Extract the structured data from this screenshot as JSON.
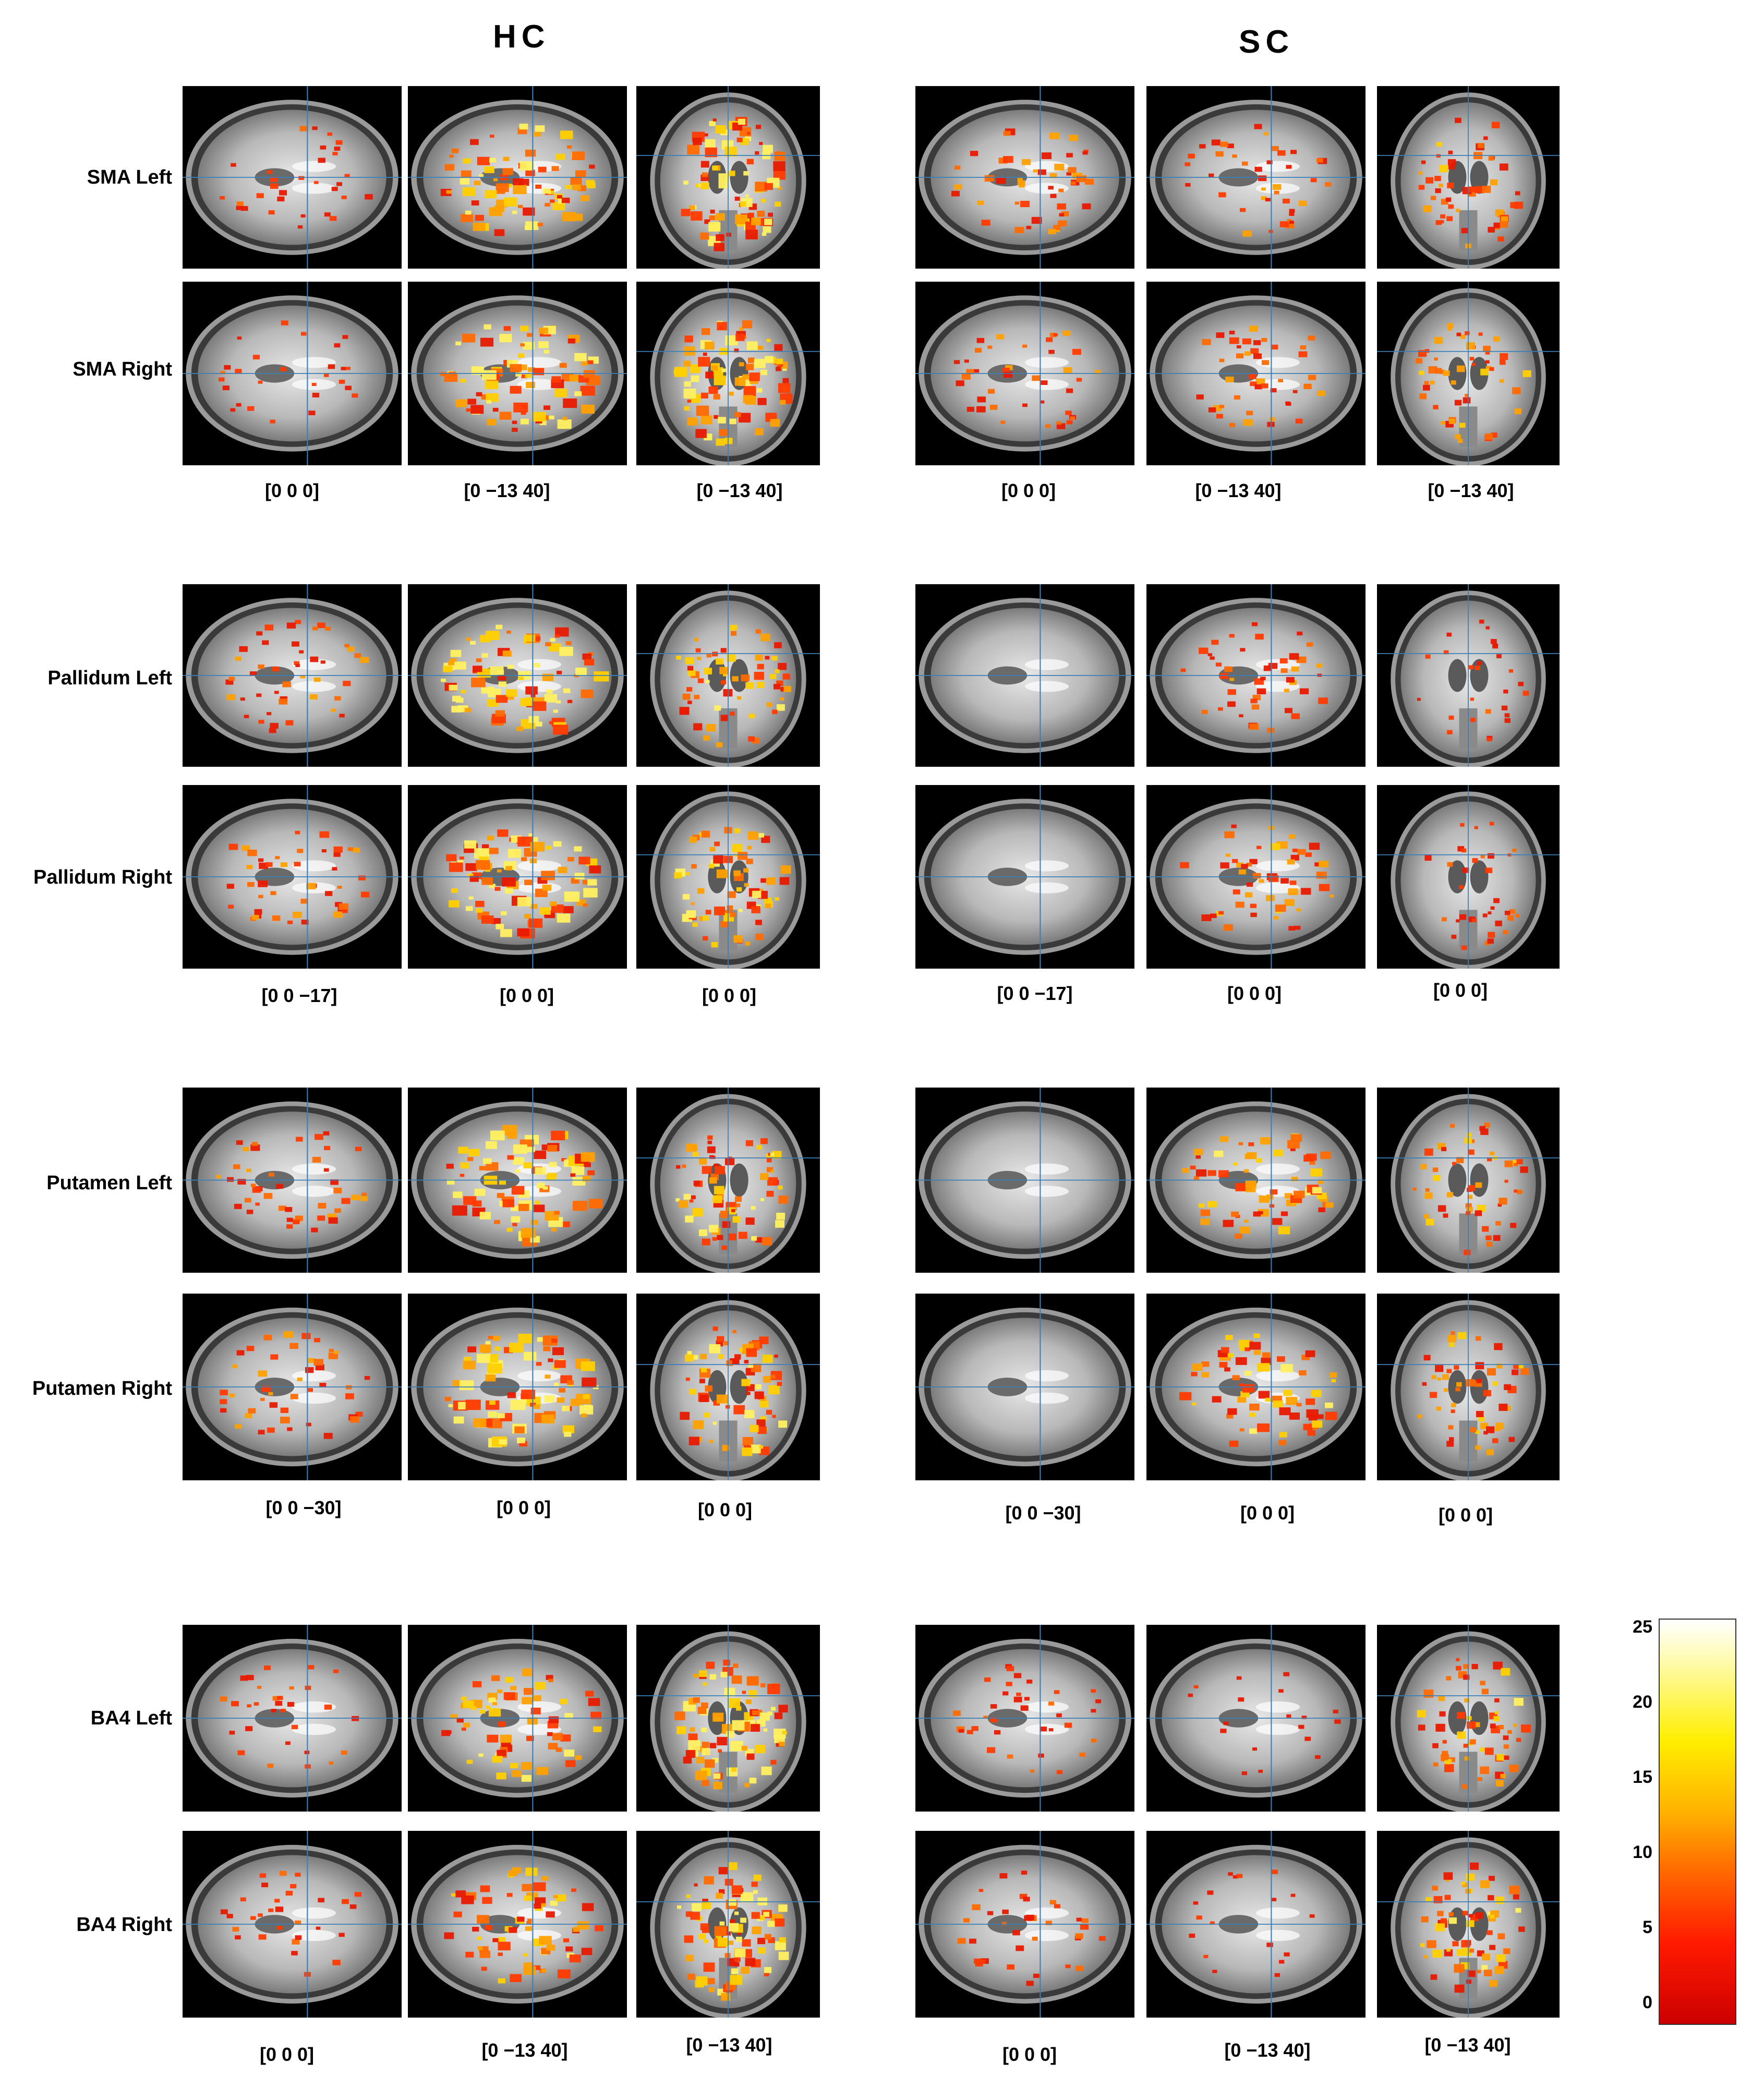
{
  "groups": [
    "HC",
    "SC"
  ],
  "sections": [
    {
      "rows": [
        "SMA Left",
        "SMA Right"
      ],
      "coords": {
        "HC": [
          "[0  0  0]",
          "[0  −13  40]",
          "[0  −13  40]"
        ],
        "SC": [
          "[0  0  0]",
          "[0  −13  40]",
          "[0  −13  40]"
        ]
      }
    },
    {
      "rows": [
        "Pallidum Left",
        "Pallidum Right"
      ],
      "coords": {
        "HC": [
          "[0  0  −17]",
          "[0  0  0]",
          "[0  0  0]"
        ],
        "SC": [
          "[0  0  −17]",
          "[0  0  0]",
          "[0  0  0]"
        ]
      }
    },
    {
      "rows": [
        "Putamen Left",
        "Putamen Right"
      ],
      "coords": {
        "HC": [
          "[0  0  −30]",
          "[0  0  0]",
          "[0  0  0]"
        ],
        "SC": [
          "[0  0  −30]",
          "[0  0  0]",
          "[0  0  0]"
        ]
      }
    },
    {
      "rows": [
        "BA4  Left",
        "BA4  Right"
      ],
      "coords": {
        "HC": [
          "[0  0  0]",
          "[0  −13  40]",
          "[0  −13  40]"
        ],
        "SC": [
          "[0  0  0]",
          "[0  −13  40]",
          "[0  −13  40]"
        ]
      }
    }
  ],
  "colorbar": {
    "ticks": [
      "25",
      "20",
      "15",
      "10",
      "5",
      "0"
    ],
    "colors": [
      "#ffffff",
      "#ffee00",
      "#ffb000",
      "#ff6a00",
      "#ff1a00",
      "#cc0000"
    ]
  }
}
